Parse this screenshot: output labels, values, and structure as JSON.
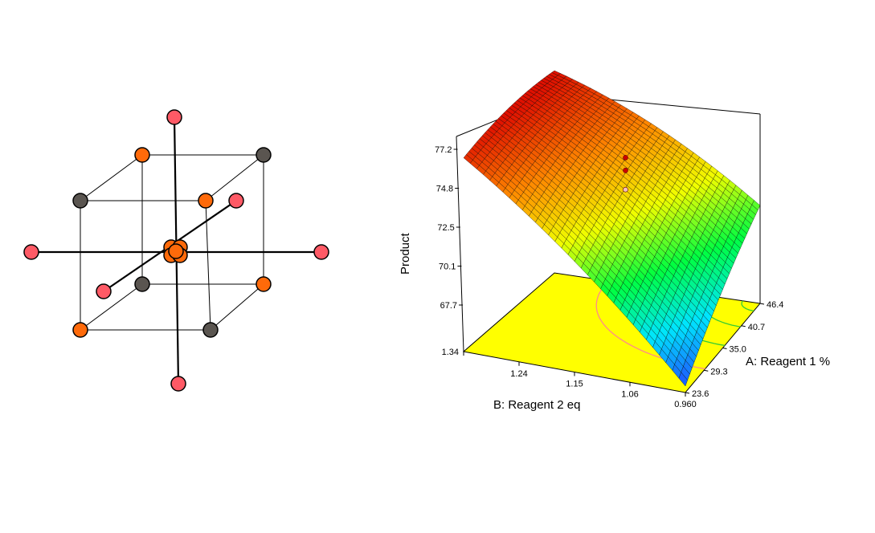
{
  "design_diagram": {
    "colors": {
      "star_point": "#ff5a66",
      "factorial_orange": "#ff6a0a",
      "factorial_gray": "#5a5550",
      "center": "#ff6a0a",
      "edge": "#000000"
    }
  },
  "chart_data": {
    "type": "surface",
    "zlabel": "Product",
    "xlabel": "B: Reagent 2 eq",
    "ylabel": "A: Reagent 1 %",
    "b_ticks": [
      "1.34",
      "1.24",
      "1.15",
      "1.06",
      "0.960"
    ],
    "a_ticks": [
      "23.6",
      "29.3",
      "35.0",
      "40.7",
      "46.4"
    ],
    "z_ticks": [
      "67.7",
      "70.1",
      "72.5",
      "74.8",
      "77.2"
    ],
    "b_range": [
      0.96,
      1.34
    ],
    "a_range": [
      23.6,
      46.4
    ],
    "z_range": [
      67.7,
      77.2
    ],
    "surface_corners": {
      "b1.34_a23.6": 76.8,
      "b1.34_a46.4": 77.2,
      "b0.96_a23.6": 68.0,
      "b0.96_a46.4": 72.3
    },
    "design_points": [
      {
        "b": 1.15,
        "a": 35.0,
        "z": 75.8,
        "color": "#cc0000"
      },
      {
        "b": 1.15,
        "a": 35.0,
        "z": 75.2,
        "color": "#cc0000"
      },
      {
        "b": 1.15,
        "a": 35.0,
        "z": 74.3,
        "color": "#f0c0c0"
      }
    ],
    "colormap": [
      "#1e50ff",
      "#00e5ff",
      "#00ff40",
      "#f0ff00",
      "#ff8c00",
      "#e01000"
    ],
    "contour_floor_color": "#ffff00",
    "grid": true
  }
}
